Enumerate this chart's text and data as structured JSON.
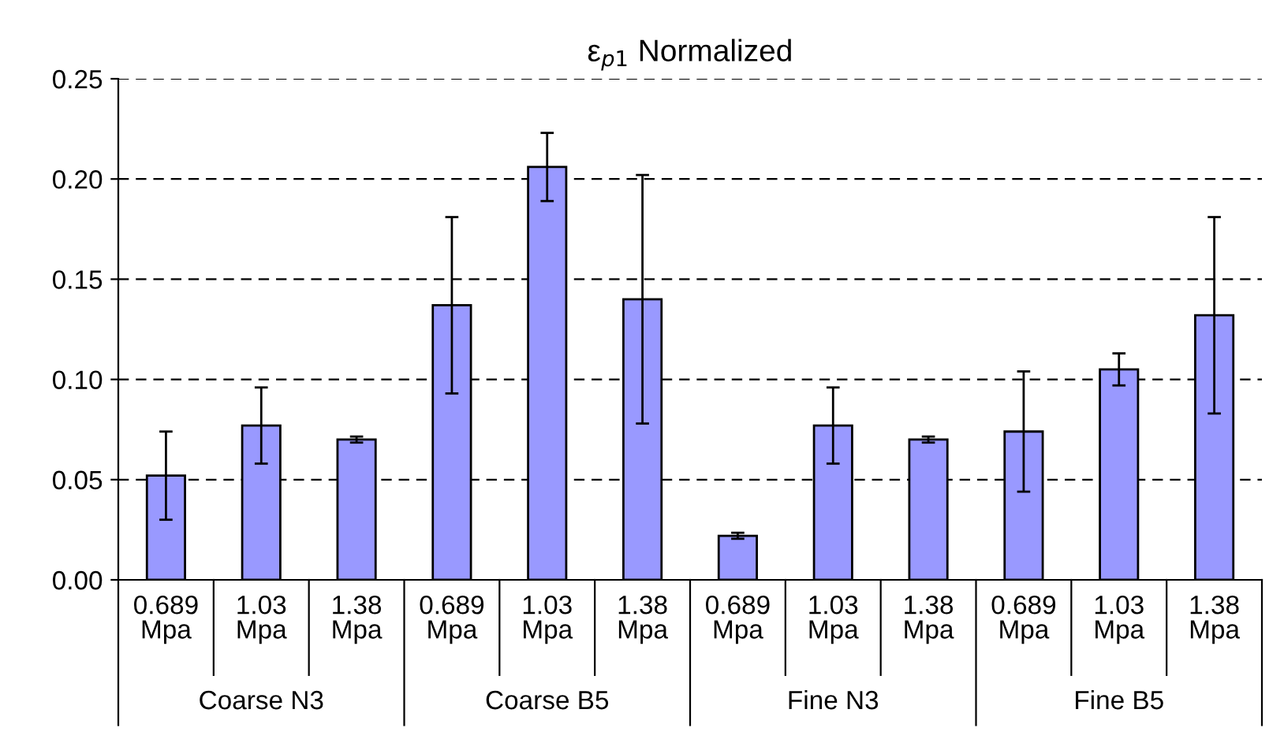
{
  "chart_data": {
    "type": "bar",
    "title": "ε$_{p1}$ Normalized",
    "categories": [
      "0.689 Mpa",
      "1.03 Mpa",
      "1.38 Mpa",
      "0.689 Mpa",
      "1.03 Mpa",
      "1.38 Mpa",
      "0.689 Mpa",
      "1.03 Mpa",
      "1.38 Mpa",
      "0.689 Mpa",
      "1.03 Mpa",
      "1.38 Mpa"
    ],
    "values": [
      0.052,
      0.077,
      0.07,
      0.137,
      0.206,
      0.14,
      0.022,
      0.077,
      0.07,
      0.074,
      0.105,
      0.132
    ],
    "errors": [
      0.022,
      0.019,
      0.0015,
      0.044,
      0.017,
      0.062,
      0.0015,
      0.019,
      0.0015,
      0.03,
      0.008,
      0.049
    ],
    "color": "#9999ff",
    "annotations": [
      "Coarse N3",
      "Coarse B5",
      "Fine N3",
      "Fine B5"
    ],
    "ylim": [
      0,
      0.25
    ],
    "yticks": [
      {
        "value": 0,
        "label": "0.00"
      },
      {
        "value": 0.05,
        "label": "0.05"
      },
      {
        "value": 0.1,
        "label": "0.10"
      },
      {
        "value": 0.15,
        "label": "0.15"
      },
      {
        "value": 0.2,
        "label": "0.20"
      },
      {
        "value": 0.25,
        "label": "0.25"
      }
    ],
    "grid": "y",
    "line_style": "dashed",
    "legend": false
  }
}
